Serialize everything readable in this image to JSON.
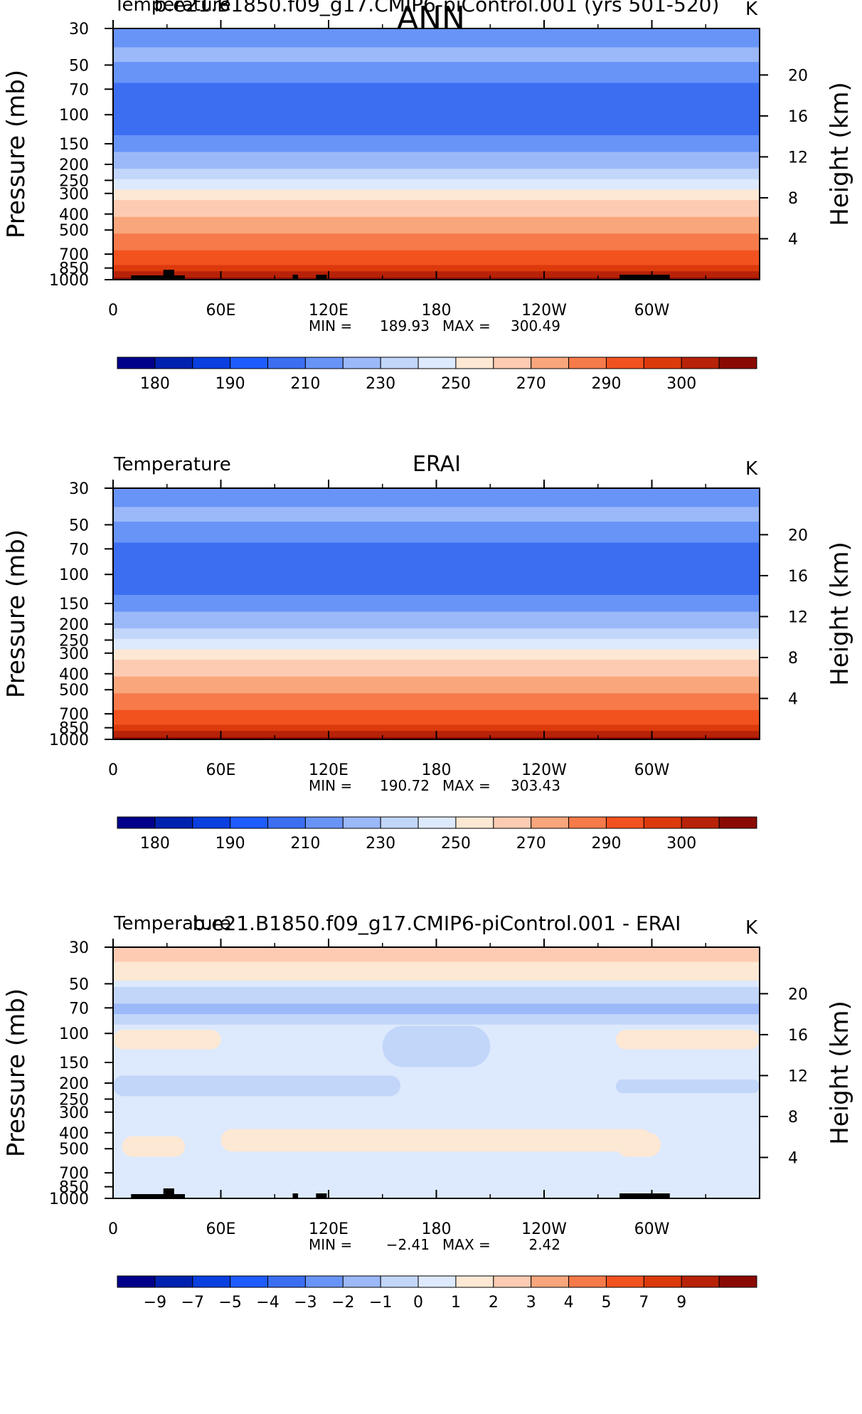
{
  "figure": {
    "title": "ANN"
  },
  "pressure_ticks": [
    "30",
    "50",
    "70",
    "100",
    "150",
    "200",
    "250",
    "300",
    "400",
    "500",
    "700",
    "850",
    "1000"
  ],
  "height_ticks": [
    "20",
    "16",
    "12",
    "8",
    "4"
  ],
  "lon_ticks": [
    "0",
    "60E",
    "120E",
    "180",
    "120W",
    "60W"
  ],
  "chart_data": [
    {
      "type": "heatmap",
      "title": "b.e21.B1850.f09_g17.CMIP6-piControl.001 (yrs 501-520)",
      "variable": "Temperature",
      "units": "K",
      "ylabel": "Pressure (mb)",
      "ylabel_right": "Height (km)",
      "ylim": [
        1000,
        30
      ],
      "y_scale": "log",
      "xlim": [
        0,
        360
      ],
      "min_label": "MIN",
      "max_label": "MAX",
      "min": "189.93",
      "max": "300.49",
      "levels": [
        180,
        185,
        190,
        200,
        210,
        220,
        230,
        240,
        250,
        260,
        270,
        280,
        290,
        295,
        300
      ],
      "colorbar_labels": [
        "180",
        "190",
        "210",
        "230",
        "250",
        "270",
        "290",
        "300"
      ],
      "colors": [
        "#00008b",
        "#0022b0",
        "#0a3fe0",
        "#1f5cff",
        "#3c6ef2",
        "#6894f8",
        "#9bb8f9",
        "#c2d6fa",
        "#dde9fc",
        "#fde8d4",
        "#fccbb2",
        "#f9a67c",
        "#f67a4a",
        "#f2521f",
        "#dc3a0c",
        "#b72208",
        "#8a0a03"
      ],
      "profile": [
        [
          30,
          206
        ],
        [
          45,
          212
        ],
        [
          60,
          201
        ],
        [
          80,
          197
        ],
        [
          100,
          196
        ],
        [
          130,
          199
        ],
        [
          160,
          208
        ],
        [
          190,
          215
        ],
        [
          230,
          223
        ],
        [
          270,
          237
        ],
        [
          330,
          251
        ],
        [
          400,
          258
        ],
        [
          480,
          266
        ],
        [
          600,
          276
        ],
        [
          730,
          285
        ],
        [
          820,
          291
        ],
        [
          920,
          297
        ],
        [
          1000,
          301
        ]
      ],
      "topography": true
    },
    {
      "type": "heatmap",
      "title": "ERAI",
      "variable": "Temperature",
      "units": "K",
      "ylabel": "Pressure (mb)",
      "ylabel_right": "Height (km)",
      "ylim": [
        1000,
        30
      ],
      "y_scale": "log",
      "xlim": [
        0,
        360
      ],
      "min_label": "MIN",
      "max_label": "MAX",
      "min": "190.72",
      "max": "303.43",
      "levels": [
        180,
        185,
        190,
        200,
        210,
        220,
        230,
        240,
        250,
        260,
        270,
        280,
        290,
        295,
        300
      ],
      "colorbar_labels": [
        "180",
        "190",
        "210",
        "230",
        "250",
        "270",
        "290",
        "300"
      ],
      "colors": [
        "#00008b",
        "#0022b0",
        "#0a3fe0",
        "#1f5cff",
        "#3c6ef2",
        "#6894f8",
        "#9bb8f9",
        "#c2d6fa",
        "#dde9fc",
        "#fde8d4",
        "#fccbb2",
        "#f9a67c",
        "#f67a4a",
        "#f2521f",
        "#dc3a0c",
        "#b72208",
        "#8a0a03"
      ],
      "profile": [
        [
          30,
          206
        ],
        [
          45,
          212
        ],
        [
          60,
          201
        ],
        [
          80,
          197
        ],
        [
          100,
          196
        ],
        [
          130,
          199
        ],
        [
          160,
          208
        ],
        [
          190,
          215
        ],
        [
          230,
          223
        ],
        [
          270,
          237
        ],
        [
          330,
          251
        ],
        [
          400,
          258
        ],
        [
          480,
          266
        ],
        [
          600,
          276
        ],
        [
          730,
          285
        ],
        [
          820,
          291
        ],
        [
          920,
          297
        ],
        [
          1000,
          302
        ]
      ],
      "topography": false
    },
    {
      "type": "heatmap",
      "title": "b.e21.B1850.f09_g17.CMIP6-piControl.001 - ERAI",
      "variable": "Temperature",
      "units": "K",
      "ylabel": "Pressure (mb)",
      "ylabel_right": "Height (km)",
      "ylim": [
        1000,
        30
      ],
      "y_scale": "log",
      "xlim": [
        0,
        360
      ],
      "min_label": "MIN",
      "max_label": "MAX",
      "min": "-2.41",
      "max": "2.42",
      "levels": [
        -9,
        -7,
        -5,
        -4,
        -3,
        -2,
        -1,
        0,
        1,
        2,
        3,
        4,
        5,
        7,
        9
      ],
      "colorbar_labels": [
        "-9",
        "-7",
        "-5",
        "-4",
        "-3",
        "-2",
        "-1",
        "0",
        "1",
        "2",
        "3",
        "4",
        "5",
        "7",
        "9"
      ],
      "colors": [
        "#00008b",
        "#0022b0",
        "#0a3fe0",
        "#1f5cff",
        "#3c6ef2",
        "#6894f8",
        "#9bb8f9",
        "#c2d6fa",
        "#dde9fc",
        "#fde8d4",
        "#fccbb2",
        "#f9a67c",
        "#f67a4a",
        "#f2521f",
        "#dc3a0c",
        "#b72208",
        "#8a0a03"
      ],
      "profile": [
        [
          30,
          1.5
        ],
        [
          45,
          0.5
        ],
        [
          55,
          -1.5
        ],
        [
          72,
          -2.3
        ],
        [
          85,
          -1.2
        ],
        [
          100,
          -0.5
        ],
        [
          150,
          -0.5
        ],
        [
          300,
          -0.4
        ],
        [
          500,
          -0.4
        ],
        [
          700,
          -0.3
        ],
        [
          1000,
          -0.3
        ]
      ],
      "anomalies": [
        {
          "lon": [
            0,
            60
          ],
          "p": [
            95,
            125
          ],
          "value": 0.5
        },
        {
          "lon": [
            280,
            360
          ],
          "p": [
            95,
            125
          ],
          "value": 0.5
        },
        {
          "lon": [
            150,
            210
          ],
          "p": [
            90,
            160
          ],
          "value": -1.5
        },
        {
          "lon": [
            0,
            160
          ],
          "p": [
            180,
            240
          ],
          "value": -1.5
        },
        {
          "lon": [
            280,
            360
          ],
          "p": [
            190,
            230
          ],
          "value": -1.5
        },
        {
          "lon": [
            60,
            300
          ],
          "p": [
            380,
            520
          ],
          "value": 0.5
        },
        {
          "lon": [
            5,
            40
          ],
          "p": [
            420,
            560
          ],
          "value": 0.5
        },
        {
          "lon": [
            280,
            305
          ],
          "p": [
            400,
            560
          ],
          "value": 0.5
        }
      ],
      "topography": true
    }
  ]
}
